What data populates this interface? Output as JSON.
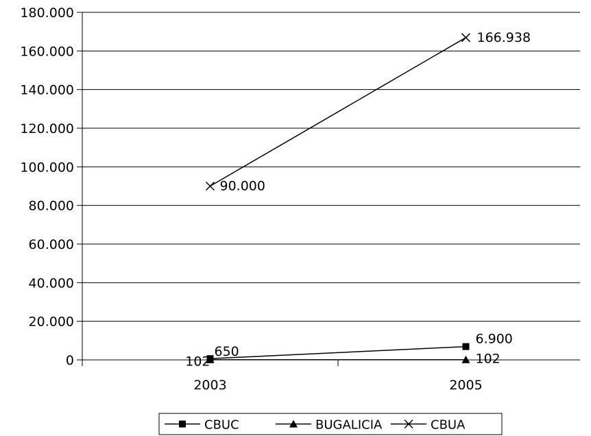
{
  "chart_data": {
    "type": "line",
    "categories": [
      "2003",
      "2005"
    ],
    "ylim": [
      0,
      180000
    ],
    "y_ticks": [
      {
        "value": 0,
        "label": "0"
      },
      {
        "value": 20000,
        "label": "20.000"
      },
      {
        "value": 40000,
        "label": "40.000"
      },
      {
        "value": 60000,
        "label": "60.000"
      },
      {
        "value": 80000,
        "label": "80.000"
      },
      {
        "value": 100000,
        "label": "100.000"
      },
      {
        "value": 120000,
        "label": "120.000"
      },
      {
        "value": 140000,
        "label": "140.000"
      },
      {
        "value": 160000,
        "label": "160.000"
      },
      {
        "value": 180000,
        "label": "180.000"
      }
    ],
    "grid": true,
    "legend_position": "bottom",
    "series": [
      {
        "name": "CBUC",
        "marker": "square",
        "color": "#000000",
        "values": [
          650,
          6900
        ],
        "labels": [
          "650",
          "6.900"
        ]
      },
      {
        "name": "BUGALICIA",
        "marker": "triangle",
        "color": "#000000",
        "values": [
          102,
          102
        ],
        "labels": [
          "102",
          "102"
        ]
      },
      {
        "name": "CBUA",
        "marker": "cross",
        "color": "#000000",
        "values": [
          90000,
          166938
        ],
        "labels": [
          "90.000",
          "166.938"
        ]
      }
    ]
  }
}
